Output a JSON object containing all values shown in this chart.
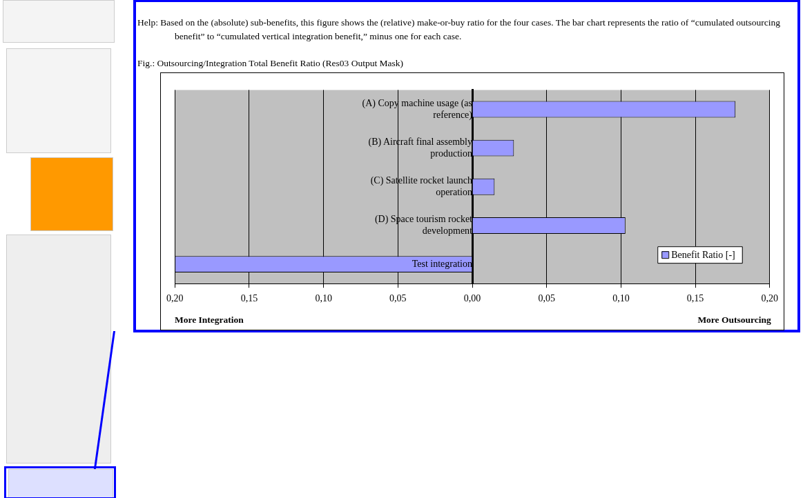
{
  "chart_data": {
    "type": "bar",
    "orientation": "horizontal",
    "title": "Fig.:  Outsourcing/Integration Total Benefit Ratio (Res03 Output Mask)",
    "categories": [
      "(A) Copy machine usage (as reference)",
      "(B) Aircraft final assembly production",
      "(C) Satellite rocket launch operation",
      "(D) Space tourism rocket development",
      "Test integration"
    ],
    "series": [
      {
        "name": "Benefit Ratio [-]",
        "color": "#9999ff",
        "values": [
          0.177,
          0.028,
          0.015,
          0.103,
          -0.2
        ]
      }
    ],
    "xlim": [
      -0.2,
      0.2
    ],
    "xticks": [
      {
        "value": -0.2,
        "label": "0,20"
      },
      {
        "value": -0.15,
        "label": "0,15"
      },
      {
        "value": -0.1,
        "label": "0,10"
      },
      {
        "value": -0.05,
        "label": "0,05"
      },
      {
        "value": 0,
        "label": "0,00"
      },
      {
        "value": 0.05,
        "label": "0,05"
      },
      {
        "value": 0.1,
        "label": "0,10"
      },
      {
        "value": 0.15,
        "label": "0,15"
      },
      {
        "value": 0.2,
        "label": "0,20"
      }
    ],
    "grid": "x",
    "legend": "bottom right",
    "annotations": [
      "Help: Based on the (absolute) sub-benefits, this figure shows the (relative) make-or-buy ratio for the four cases. The bar chart represents the ratio of “cumulated outsourcing benefit” to “cumulated vertical integration benefit,” minus one for each case.",
      "More Integration",
      "More Outsourcing"
    ]
  }
}
